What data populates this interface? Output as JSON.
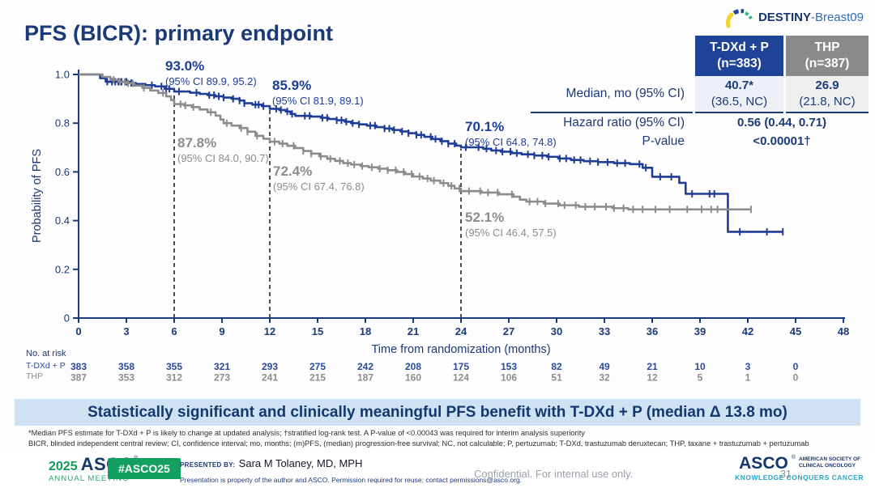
{
  "colors": {
    "navy": "#1b3a78",
    "curve_blue": "#1f3d96",
    "curve_gray": "#8c8c8c",
    "axis": "#1b3a78",
    "refline": "#3c3c3c",
    "atrisk_blue": "#2a4a9e",
    "atrisk_gray": "#8c8c8c",
    "header_blue_bg": "#1f4396",
    "header_gray_bg": "#8a8a8a",
    "banner_bg": "#cfe2f4",
    "green": "#13a05e",
    "teal": "#2ba3c9"
  },
  "logo": {
    "brand": "DESTINY",
    "suffix": "-Breast09"
  },
  "title": "PFS (BICR): primary endpoint",
  "results_table": {
    "columns": [
      {
        "line1": "T-DXd + P",
        "line2": "(n=383)"
      },
      {
        "line1": "THP",
        "line2": "(n=387)"
      }
    ],
    "median": {
      "label": "Median, mo (95% CI)",
      "tdxd_value": "40.7*",
      "tdxd_ci": "(36.5, NC)",
      "thp_value": "26.9",
      "thp_ci": "(21.8, NC)"
    },
    "hazard_ratio": {
      "label": "Hazard ratio (95% CI)",
      "value": "0.56 (0.44, 0.71)"
    },
    "p_value": {
      "label": "P-value",
      "value": "<0.00001†"
    }
  },
  "chart_data": {
    "type": "line",
    "subtype": "kaplan-meier-step",
    "title": "",
    "xlabel": "Time from randomization (months)",
    "ylabel": "Probability of PFS",
    "xlim": [
      0,
      48
    ],
    "ylim": [
      0,
      1.0
    ],
    "grid": false,
    "x_ticks": [
      0,
      3,
      6,
      9,
      12,
      15,
      18,
      21,
      24,
      27,
      30,
      33,
      36,
      39,
      42,
      45,
      48
    ],
    "y_ticks": [
      {
        "v": 1.0,
        "label": "1.0"
      },
      {
        "v": 0.8,
        "label": "0.8"
      },
      {
        "v": 0.6,
        "label": "0.6"
      },
      {
        "v": 0.4,
        "label": "0.4"
      },
      {
        "v": 0.2,
        "label": "0.2"
      },
      {
        "v": 0,
        "label": "0"
      }
    ],
    "reference_lines": [
      {
        "month": 6,
        "top": 0.925
      },
      {
        "month": 12,
        "top": 0.857
      },
      {
        "month": 24,
        "top": 0.695
      }
    ],
    "series": [
      {
        "name": "T-DXd + P",
        "color": "#1f3d96",
        "steps": [
          [
            0,
            1.0
          ],
          [
            1.2,
            1.0
          ],
          [
            1.35,
            0.985
          ],
          [
            1.7,
            0.97
          ],
          [
            3.2,
            0.965
          ],
          [
            3.6,
            0.961
          ],
          [
            4.2,
            0.956
          ],
          [
            4.8,
            0.951
          ],
          [
            5.4,
            0.941
          ],
          [
            6.0,
            0.93
          ],
          [
            7.0,
            0.925
          ],
          [
            7.6,
            0.92
          ],
          [
            8.1,
            0.915
          ],
          [
            8.6,
            0.91
          ],
          [
            9.1,
            0.905
          ],
          [
            9.6,
            0.9
          ],
          [
            10.1,
            0.893
          ],
          [
            10.4,
            0.882
          ],
          [
            10.9,
            0.876
          ],
          [
            11.5,
            0.87
          ],
          [
            12.0,
            0.859
          ],
          [
            12.6,
            0.854
          ],
          [
            13.0,
            0.848
          ],
          [
            13.3,
            0.838
          ],
          [
            13.6,
            0.83
          ],
          [
            14.6,
            0.827
          ],
          [
            15.2,
            0.822
          ],
          [
            15.7,
            0.817
          ],
          [
            16.2,
            0.812
          ],
          [
            16.7,
            0.806
          ],
          [
            17.1,
            0.8
          ],
          [
            17.6,
            0.795
          ],
          [
            18.1,
            0.79
          ],
          [
            18.7,
            0.784
          ],
          [
            19.2,
            0.778
          ],
          [
            19.7,
            0.772
          ],
          [
            20.2,
            0.766
          ],
          [
            20.7,
            0.759
          ],
          [
            21.2,
            0.752
          ],
          [
            21.7,
            0.744
          ],
          [
            22.2,
            0.735
          ],
          [
            22.7,
            0.726
          ],
          [
            23.2,
            0.716
          ],
          [
            23.7,
            0.708
          ],
          [
            24.0,
            0.701
          ],
          [
            25.4,
            0.695
          ],
          [
            25.9,
            0.688
          ],
          [
            26.5,
            0.683
          ],
          [
            27.2,
            0.677
          ],
          [
            27.8,
            0.672
          ],
          [
            28.6,
            0.667
          ],
          [
            29.4,
            0.662
          ],
          [
            30.1,
            0.655
          ],
          [
            30.9,
            0.649
          ],
          [
            31.7,
            0.644
          ],
          [
            32.6,
            0.64
          ],
          [
            33.6,
            0.636
          ],
          [
            34.6,
            0.632
          ],
          [
            35.4,
            0.617
          ],
          [
            36.0,
            0.58
          ],
          [
            37.7,
            0.555
          ],
          [
            38.1,
            0.51
          ],
          [
            40.7,
            0.51
          ],
          [
            40.75,
            0.354
          ],
          [
            44.2,
            0.354
          ]
        ],
        "censor_months": [
          1.8,
          2.1,
          2.3,
          2.5,
          2.7,
          3.0,
          3.3,
          4.6,
          5.2,
          5.5,
          5.7,
          6.3,
          7.4,
          8.2,
          8.5,
          8.8,
          9.1,
          9.7,
          10.1,
          10.4,
          11.1,
          11.3,
          11.6,
          12.4,
          12.7,
          13.1,
          13.4,
          14.2,
          14.5,
          15.3,
          15.6,
          16.2,
          16.5,
          16.8,
          17.2,
          17.6,
          18.3,
          18.6,
          19.2,
          19.5,
          19.8,
          20.3,
          20.7,
          21.2,
          21.5,
          22.1,
          22.4,
          22.8,
          23.2,
          23.6,
          24.3,
          25.1,
          25.6,
          26.2,
          26.6,
          27.1,
          27.5,
          28.2,
          28.6,
          29.1,
          29.5,
          30.2,
          30.6,
          31.1,
          31.5,
          32.1,
          32.6,
          33.2,
          33.8,
          34.3,
          35.2,
          35.6,
          36.5,
          37.2,
          38.5,
          39.6,
          39.9,
          41.5,
          43.2,
          44.2
        ]
      },
      {
        "name": "THP",
        "color": "#8c8c8c",
        "steps": [
          [
            0,
            1.0
          ],
          [
            1.3,
            1.0
          ],
          [
            1.5,
            0.99
          ],
          [
            2.0,
            0.978
          ],
          [
            2.5,
            0.97
          ],
          [
            3.0,
            0.964
          ],
          [
            3.5,
            0.954
          ],
          [
            4.0,
            0.945
          ],
          [
            4.5,
            0.934
          ],
          [
            5.0,
            0.924
          ],
          [
            5.5,
            0.91
          ],
          [
            5.8,
            0.895
          ],
          [
            6.0,
            0.878
          ],
          [
            6.6,
            0.873
          ],
          [
            7.1,
            0.866
          ],
          [
            7.6,
            0.856
          ],
          [
            8.1,
            0.845
          ],
          [
            8.6,
            0.831
          ],
          [
            8.9,
            0.815
          ],
          [
            9.1,
            0.8
          ],
          [
            9.6,
            0.79
          ],
          [
            10.1,
            0.78
          ],
          [
            10.6,
            0.765
          ],
          [
            11.1,
            0.748
          ],
          [
            11.6,
            0.736
          ],
          [
            12.0,
            0.724
          ],
          [
            12.6,
            0.716
          ],
          [
            13.1,
            0.707
          ],
          [
            13.6,
            0.698
          ],
          [
            14.1,
            0.686
          ],
          [
            14.6,
            0.675
          ],
          [
            15.1,
            0.664
          ],
          [
            15.6,
            0.654
          ],
          [
            16.1,
            0.645
          ],
          [
            16.6,
            0.636
          ],
          [
            17.1,
            0.63
          ],
          [
            17.7,
            0.624
          ],
          [
            18.2,
            0.619
          ],
          [
            18.8,
            0.613
          ],
          [
            19.4,
            0.607
          ],
          [
            20.0,
            0.6
          ],
          [
            20.5,
            0.591
          ],
          [
            21.0,
            0.581
          ],
          [
            21.6,
            0.573
          ],
          [
            22.1,
            0.564
          ],
          [
            22.7,
            0.554
          ],
          [
            23.2,
            0.543
          ],
          [
            23.6,
            0.532
          ],
          [
            24.0,
            0.521
          ],
          [
            25.3,
            0.515
          ],
          [
            26.4,
            0.508
          ],
          [
            27.3,
            0.498
          ],
          [
            27.7,
            0.486
          ],
          [
            28.1,
            0.478
          ],
          [
            29.2,
            0.47
          ],
          [
            30.2,
            0.463
          ],
          [
            31.4,
            0.457
          ],
          [
            33.5,
            0.451
          ],
          [
            34.5,
            0.446
          ],
          [
            42.2,
            0.446
          ]
        ],
        "censor_months": [
          2.2,
          2.6,
          2.9,
          3.1,
          3.4,
          4.1,
          5.3,
          6.4,
          6.7,
          7.2,
          8.3,
          9.3,
          10.2,
          10.6,
          11.2,
          12.3,
          12.8,
          13.5,
          14.1,
          14.6,
          15.2,
          15.8,
          16.4,
          16.9,
          17.3,
          17.8,
          18.4,
          18.9,
          19.4,
          19.9,
          20.4,
          20.9,
          21.4,
          21.9,
          22.3,
          22.9,
          23.4,
          23.9,
          24.5,
          25.2,
          25.7,
          26.3,
          27.2,
          28.3,
          28.8,
          29.3,
          30.1,
          30.5,
          31.2,
          31.8,
          32.4,
          33.1,
          33.6,
          34.2,
          34.8,
          35.4,
          36.2,
          37.1,
          38.2,
          39.1,
          39.7,
          40.1,
          42.2
        ]
      }
    ],
    "annotations": [
      {
        "series": "T-DXd + P",
        "month": 6,
        "pct": "93.0%",
        "ci": "(95% CI 89.9, 95.2)"
      },
      {
        "series": "T-DXd + P",
        "month": 12,
        "pct": "85.9%",
        "ci": "(95% CI 81.9, 89.1)"
      },
      {
        "series": "T-DXd + P",
        "month": 24,
        "pct": "70.1%",
        "ci": "(95% CI 64.8, 74.8)"
      },
      {
        "series": "THP",
        "month": 6,
        "pct": "87.8%",
        "ci": "(95% CI 84.0, 90.7)"
      },
      {
        "series": "THP",
        "month": 12,
        "pct": "72.4%",
        "ci": "(95% CI 67.4, 76.8)"
      },
      {
        "series": "THP",
        "month": 24,
        "pct": "52.1%",
        "ci": "(95% CI 46.4, 57.5)"
      }
    ],
    "at_risk": {
      "label": "No. at risk",
      "months": [
        0,
        3,
        6,
        9,
        12,
        15,
        18,
        21,
        24,
        27,
        30,
        33,
        36,
        39,
        42,
        45
      ],
      "rows": [
        {
          "name": "T-DXd + P",
          "counts": [
            383,
            358,
            355,
            321,
            293,
            275,
            242,
            208,
            175,
            153,
            82,
            49,
            21,
            10,
            3,
            0
          ]
        },
        {
          "name": "THP",
          "counts": [
            387,
            353,
            312,
            273,
            241,
            215,
            187,
            160,
            124,
            106,
            51,
            32,
            12,
            5,
            1,
            0
          ]
        }
      ]
    }
  },
  "banner": {
    "text": "Statistically significant and clinically meaningful PFS benefit with T-DXd + P (median Δ 13.8 mo)"
  },
  "footnotes": {
    "line1": "*Median PFS estimate for T-DXd + P is likely to change at updated analysis; †stratified log-rank test. A P-value of <0.00043 was required for interim analysis superiority",
    "line2": "BICR, blinded independent central review; CI, confidence interval; mo, months; (m)PFS, (median) progression-free survival; NC, not calculable; P, pertuzumab; T-DXd, trastuzumab deruxtecan; THP, taxane + trastuzumab + pertuzumab"
  },
  "footer": {
    "year": "2025",
    "asco_wordmark": "ASCO",
    "reg": "®",
    "annual_meeting": "ANNUAL MEETING",
    "hashtag": "#ASCO25",
    "presented_by_label": "PRESENTED BY:",
    "presenter": "Sara M Tolaney, MD, MPH",
    "permission": "Presentation is property of the author and ASCO. Permission required for reuse; contact permissions@asco.org.",
    "confidential": "Confidential. For internal use only.",
    "page": "31",
    "society": "AMERICAN SOCIETY OF CLINICAL ONCOLOGY",
    "tagline": "KNOWLEDGE CONQUERS CANCER"
  }
}
